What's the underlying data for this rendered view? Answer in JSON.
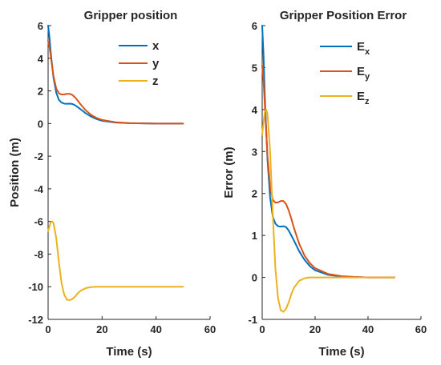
{
  "chart_data": [
    {
      "type": "line",
      "title": "Gripper position",
      "xlabel": "Time (s)",
      "ylabel": "Position (m)",
      "xlim": [
        0,
        60
      ],
      "ylim": [
        -12,
        6
      ],
      "xticks": [
        0,
        20,
        40,
        60
      ],
      "yticks": [
        -12,
        -10,
        -8,
        -6,
        -4,
        -2,
        0,
        2,
        4,
        6
      ],
      "legend_position": "top-right",
      "series": [
        {
          "name": "x",
          "color": "#0072BD",
          "x": [
            0,
            0.5,
            1,
            2,
            3,
            4,
            5,
            6,
            7,
            8,
            9,
            10,
            11,
            12,
            14,
            16,
            18,
            20,
            25,
            30,
            35,
            40,
            45,
            50
          ],
          "y": [
            6,
            5.3,
            4.3,
            2.8,
            1.9,
            1.45,
            1.28,
            1.22,
            1.21,
            1.22,
            1.2,
            1.12,
            1.0,
            0.88,
            0.62,
            0.42,
            0.27,
            0.17,
            0.06,
            0.02,
            0.01,
            0.0,
            0.0,
            0.0
          ]
        },
        {
          "name": "y",
          "color": "#D95319",
          "x": [
            0,
            0.5,
            1,
            2,
            3,
            4,
            5,
            6,
            7,
            8,
            9,
            10,
            11,
            12,
            14,
            16,
            18,
            20,
            25,
            30,
            35,
            40,
            45,
            50
          ],
          "y": [
            5.05,
            4.7,
            4.1,
            2.9,
            2.15,
            1.85,
            1.78,
            1.79,
            1.82,
            1.82,
            1.75,
            1.6,
            1.4,
            1.18,
            0.8,
            0.52,
            0.34,
            0.22,
            0.08,
            0.03,
            0.01,
            0.0,
            0.0,
            0.0
          ]
        },
        {
          "name": "z",
          "color": "#EDB120",
          "x": [
            0,
            0.5,
            1,
            1.5,
            2,
            3,
            4,
            5,
            6,
            7,
            8,
            9,
            10,
            11,
            12,
            14,
            16,
            18,
            20,
            25,
            30,
            40,
            50
          ],
          "y": [
            -6.6,
            -6.3,
            -6.05,
            -6.0,
            -6.1,
            -7.0,
            -8.5,
            -9.8,
            -10.5,
            -10.8,
            -10.82,
            -10.75,
            -10.6,
            -10.4,
            -10.25,
            -10.08,
            -10.02,
            -10.0,
            -10.0,
            -10.0,
            -10.0,
            -10.0,
            -10.0
          ]
        }
      ]
    },
    {
      "type": "line",
      "title": "Gripper Position Error",
      "xlabel": "Time (s)",
      "ylabel": "Error (m)",
      "xlim": [
        0,
        60
      ],
      "ylim": [
        -1,
        6
      ],
      "xticks": [
        0,
        20,
        40,
        60
      ],
      "yticks": [
        -1,
        0,
        1,
        2,
        3,
        4,
        5,
        6
      ],
      "legend_position": "top-right",
      "series": [
        {
          "name": "E",
          "name_subscript": "x",
          "color": "#0072BD",
          "x": [
            0,
            0.5,
            1,
            2,
            3,
            4,
            5,
            6,
            7,
            8,
            9,
            10,
            11,
            12,
            14,
            16,
            18,
            20,
            25,
            30,
            35,
            40,
            45,
            50
          ],
          "y": [
            6,
            5.3,
            4.3,
            2.8,
            1.9,
            1.45,
            1.28,
            1.22,
            1.21,
            1.22,
            1.2,
            1.12,
            1.0,
            0.88,
            0.62,
            0.42,
            0.27,
            0.17,
            0.06,
            0.02,
            0.01,
            0.0,
            0.0,
            0.0
          ]
        },
        {
          "name": "E",
          "name_subscript": "y",
          "color": "#D95319",
          "x": [
            0,
            0.5,
            1,
            2,
            3,
            4,
            5,
            6,
            7,
            8,
            9,
            10,
            11,
            12,
            14,
            16,
            18,
            20,
            25,
            30,
            35,
            40,
            45,
            50
          ],
          "y": [
            5.05,
            4.7,
            4.1,
            2.9,
            2.15,
            1.85,
            1.78,
            1.79,
            1.82,
            1.82,
            1.75,
            1.6,
            1.4,
            1.18,
            0.8,
            0.52,
            0.34,
            0.22,
            0.08,
            0.03,
            0.01,
            0.0,
            0.0,
            0.0
          ]
        },
        {
          "name": "E",
          "name_subscript": "z",
          "color": "#EDB120",
          "x": [
            0,
            0.5,
            1,
            1.5,
            2,
            3,
            4,
            5,
            6,
            7,
            8,
            9,
            10,
            11,
            12,
            14,
            16,
            18,
            20,
            25,
            30,
            40,
            50
          ],
          "y": [
            3.4,
            3.7,
            3.95,
            4.0,
            3.9,
            3.0,
            1.5,
            0.2,
            -0.5,
            -0.78,
            -0.82,
            -0.75,
            -0.6,
            -0.4,
            -0.25,
            -0.08,
            -0.02,
            0.0,
            0.0,
            0.0,
            0.0,
            0.0,
            0.0
          ]
        }
      ]
    }
  ]
}
